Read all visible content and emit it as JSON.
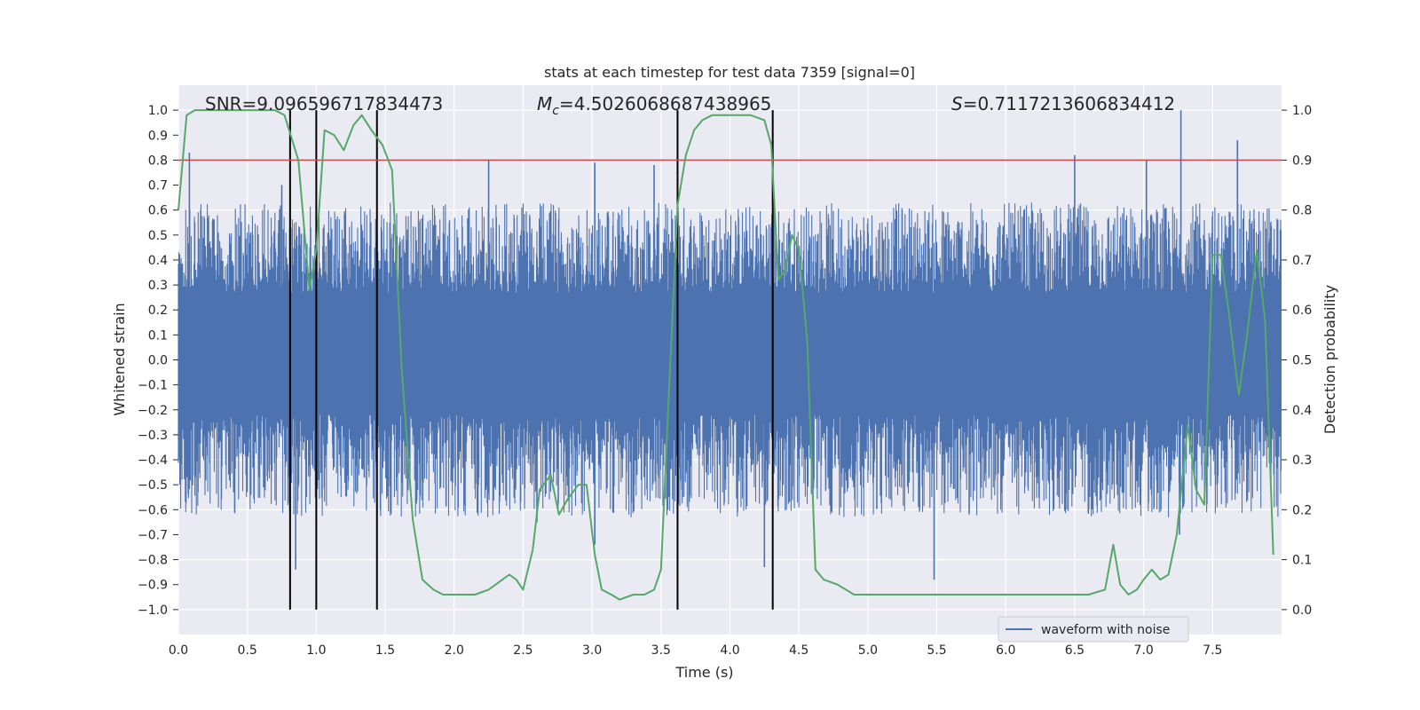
{
  "chart_data": {
    "type": "line",
    "title": "stats at each timestep for test data 7359 [signal=0]",
    "xlabel": "Time (s)",
    "ylabel": "Whitened strain",
    "ylabel_right": "Detection probability",
    "xlim": [
      0.0,
      8.0
    ],
    "ylim": [
      -1.1,
      1.1
    ],
    "ylim_right": [
      -0.05,
      1.05
    ],
    "x_ticks": [
      0.0,
      0.5,
      1.0,
      1.5,
      2.0,
      2.5,
      3.0,
      3.5,
      4.0,
      4.5,
      5.0,
      5.5,
      6.0,
      6.5,
      7.0,
      7.5
    ],
    "x_tick_labels": [
      "0.0",
      "0.5",
      "1.0",
      "1.5",
      "2.0",
      "2.5",
      "3.0",
      "3.5",
      "4.0",
      "4.5",
      "5.0",
      "5.5",
      "6.0",
      "6.5",
      "7.0",
      "7.5"
    ],
    "y_ticks": [
      1.0,
      0.9,
      0.8,
      0.7,
      0.6,
      0.5,
      0.4,
      0.3,
      0.2,
      0.1,
      0.0,
      -0.1,
      -0.2,
      -0.3,
      -0.4,
      -0.5,
      -0.6,
      -0.7,
      -0.8,
      -0.9,
      -1.0
    ],
    "y_tick_labels": [
      "1.0",
      "0.9",
      "0.8",
      "0.7",
      "0.6",
      "0.5",
      "0.4",
      "0.3",
      "0.2",
      "0.1",
      "0.0",
      "−0.1",
      "−0.2",
      "−0.3",
      "−0.4",
      "−0.5",
      "−0.6",
      "−0.7",
      "−0.8",
      "−0.9",
      "−1.0"
    ],
    "y_right_ticks": [
      1.0,
      0.9,
      0.8,
      0.7,
      0.6,
      0.5,
      0.4,
      0.3,
      0.2,
      0.1,
      0.0
    ],
    "y_right_tick_labels": [
      "1.0",
      "0.9",
      "0.8",
      "0.7",
      "0.6",
      "0.5",
      "0.4",
      "0.3",
      "0.2",
      "0.1",
      "0.0"
    ],
    "annotations": {
      "snr": "SNR=9.096596717834473",
      "mc_symbol": "M",
      "mc_sub": "c",
      "mc_value": "=4.5026068687438965",
      "s_symbol": "S",
      "s_value": "=0.7117213606834412"
    },
    "threshold": {
      "value": 0.9,
      "axis": "right",
      "color": "#c44e52"
    },
    "vertical_lines": [
      0.81,
      1.0,
      1.44,
      3.62,
      4.31
    ],
    "vertical_line_range": [
      -1.0,
      1.0
    ],
    "legend": {
      "label": "waveform with noise",
      "placement": "lower-right"
    },
    "series": [
      {
        "name": "waveform with noise",
        "axis": "left",
        "color": "#4c72b0",
        "kind": "noise",
        "dense_band": [
          -0.22,
          0.27
        ],
        "typical_range": [
          -0.45,
          0.45
        ],
        "peaks": [
          {
            "x": 0.08,
            "y": 0.83
          },
          {
            "x": 0.75,
            "y": 0.7
          },
          {
            "x": 0.85,
            "y": -0.84
          },
          {
            "x": 2.25,
            "y": 0.8
          },
          {
            "x": 2.6,
            "y": -0.65
          },
          {
            "x": 3.02,
            "y": 0.79
          },
          {
            "x": 3.02,
            "y": -0.74
          },
          {
            "x": 3.45,
            "y": 0.78
          },
          {
            "x": 4.25,
            "y": -0.83
          },
          {
            "x": 5.48,
            "y": -0.88
          },
          {
            "x": 6.5,
            "y": 0.82
          },
          {
            "x": 7.02,
            "y": 0.8
          },
          {
            "x": 7.27,
            "y": 1.0
          },
          {
            "x": 7.68,
            "y": 0.88
          },
          {
            "x": 7.26,
            "y": -0.7
          }
        ]
      },
      {
        "name": "detection probability",
        "axis": "right",
        "color": "#55a868",
        "x": [
          0.0,
          0.06,
          0.12,
          0.25,
          0.4,
          0.55,
          0.7,
          0.77,
          0.87,
          0.95,
          1.0,
          1.06,
          1.13,
          1.2,
          1.27,
          1.33,
          1.4,
          1.48,
          1.55,
          1.62,
          1.7,
          1.77,
          1.85,
          1.92,
          2.0,
          2.05,
          2.15,
          2.25,
          2.35,
          2.4,
          2.45,
          2.5,
          2.57,
          2.62,
          2.7,
          2.76,
          2.82,
          2.9,
          2.96,
          3.02,
          3.07,
          3.14,
          3.2,
          3.3,
          3.38,
          3.45,
          3.5,
          3.56,
          3.62,
          3.68,
          3.74,
          3.8,
          3.87,
          3.95,
          4.05,
          4.15,
          4.25,
          4.3,
          4.35,
          4.4,
          4.45,
          4.5,
          4.56,
          4.62,
          4.68,
          4.78,
          4.9,
          5.0,
          5.1,
          5.2,
          5.4,
          5.6,
          5.8,
          6.0,
          6.2,
          6.4,
          6.6,
          6.72,
          6.78,
          6.83,
          6.89,
          6.95,
          7.0,
          7.06,
          7.12,
          7.18,
          7.24,
          7.32,
          7.38,
          7.44,
          7.5,
          7.56,
          7.62,
          7.69,
          7.75,
          7.82,
          7.88,
          7.94
        ],
        "y": [
          0.8,
          0.99,
          1.0,
          1.0,
          1.0,
          1.0,
          1.0,
          0.99,
          0.9,
          0.64,
          0.72,
          0.96,
          0.95,
          0.92,
          0.97,
          0.99,
          0.96,
          0.93,
          0.88,
          0.48,
          0.18,
          0.06,
          0.04,
          0.03,
          0.03,
          0.03,
          0.03,
          0.04,
          0.06,
          0.07,
          0.06,
          0.04,
          0.12,
          0.24,
          0.27,
          0.19,
          0.22,
          0.25,
          0.25,
          0.11,
          0.04,
          0.03,
          0.02,
          0.03,
          0.03,
          0.04,
          0.08,
          0.45,
          0.81,
          0.91,
          0.96,
          0.98,
          0.99,
          0.99,
          0.99,
          0.99,
          0.98,
          0.93,
          0.66,
          0.68,
          0.75,
          0.72,
          0.54,
          0.08,
          0.06,
          0.05,
          0.03,
          0.03,
          0.03,
          0.03,
          0.03,
          0.03,
          0.03,
          0.03,
          0.03,
          0.03,
          0.03,
          0.04,
          0.13,
          0.05,
          0.03,
          0.04,
          0.06,
          0.08,
          0.06,
          0.07,
          0.15,
          0.37,
          0.24,
          0.21,
          0.71,
          0.71,
          0.59,
          0.43,
          0.55,
          0.72,
          0.58,
          0.11
        ]
      }
    ]
  }
}
